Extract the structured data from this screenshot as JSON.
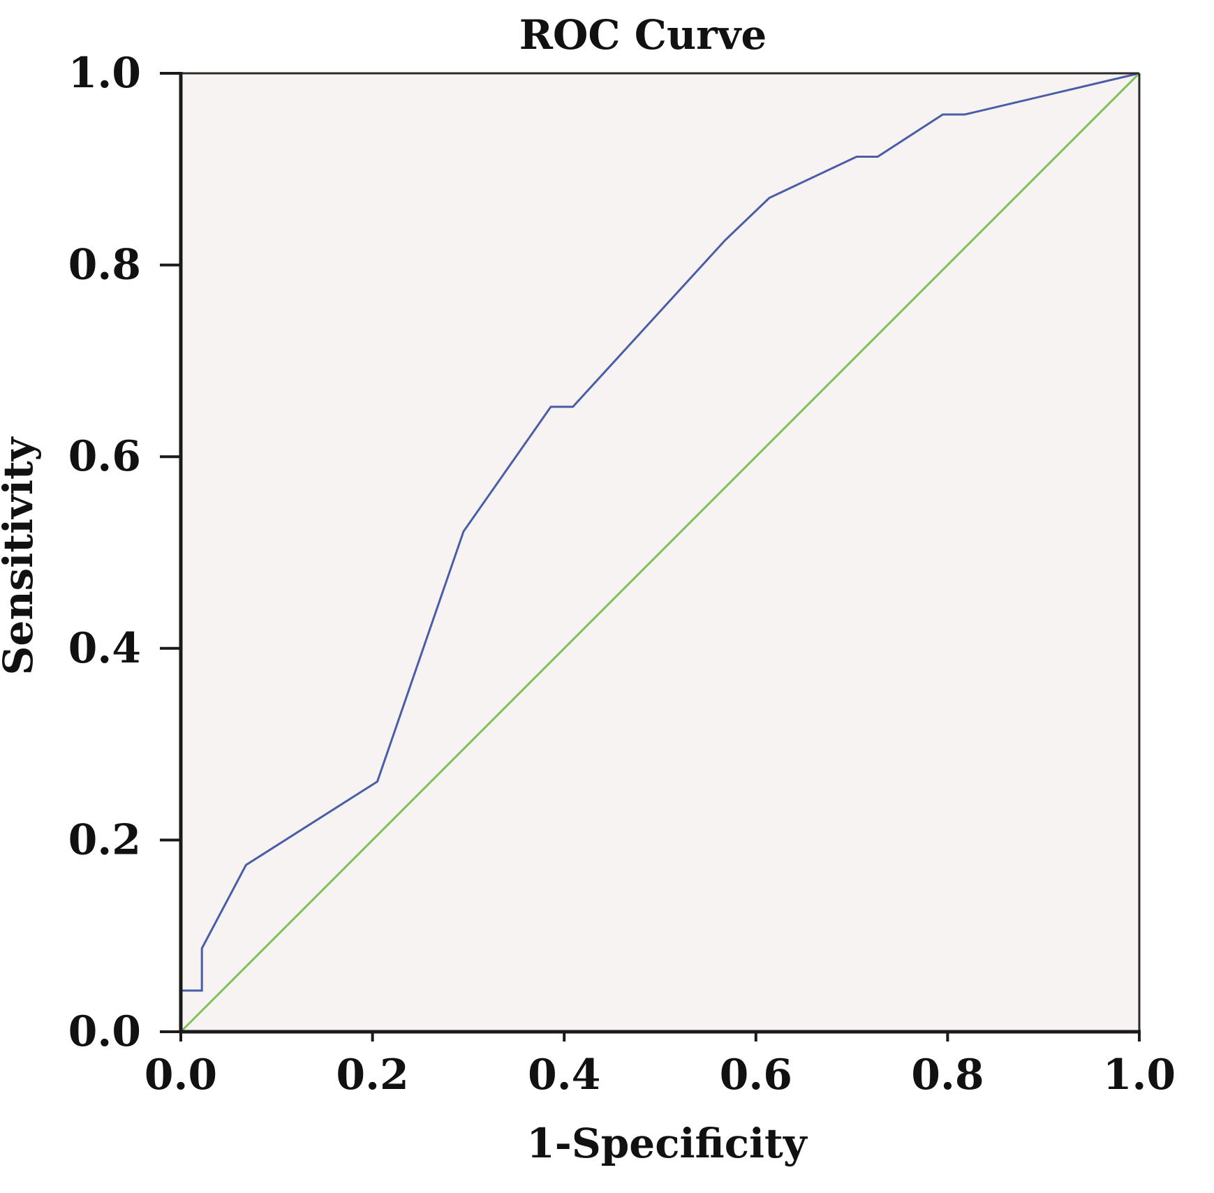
{
  "chart_data": {
    "type": "line",
    "title": "ROC Curve",
    "xlabel": "1-Specificity",
    "ylabel": "Sensitivity",
    "xlim": [
      0,
      1
    ],
    "ylim": [
      0,
      1
    ],
    "xticks": [
      "0.0",
      "0.2",
      "0.4",
      "0.6",
      "0.8",
      "1.0"
    ],
    "yticks": [
      "0.0",
      "0.2",
      "0.4",
      "0.6",
      "0.8",
      "1.0"
    ],
    "grid": false,
    "legend": "none",
    "background_color": "#f7f3f2",
    "series": [
      {
        "color": "#4a5ea8",
        "points": [
          [
            0.0,
            0.0
          ],
          [
            0.0,
            0.043
          ],
          [
            0.022,
            0.043
          ],
          [
            0.022,
            0.087
          ],
          [
            0.068,
            0.174
          ],
          [
            0.205,
            0.261
          ],
          [
            0.295,
            0.522
          ],
          [
            0.386,
            0.652
          ],
          [
            0.409,
            0.652
          ],
          [
            0.568,
            0.826
          ],
          [
            0.614,
            0.87
          ],
          [
            0.705,
            0.913
          ],
          [
            0.727,
            0.913
          ],
          [
            0.795,
            0.957
          ],
          [
            0.818,
            0.957
          ],
          [
            1.0,
            1.0
          ]
        ]
      },
      {
        "color": "#7fc05a",
        "points": [
          [
            0.0,
            0.0
          ],
          [
            1.0,
            1.0
          ]
        ]
      }
    ]
  }
}
